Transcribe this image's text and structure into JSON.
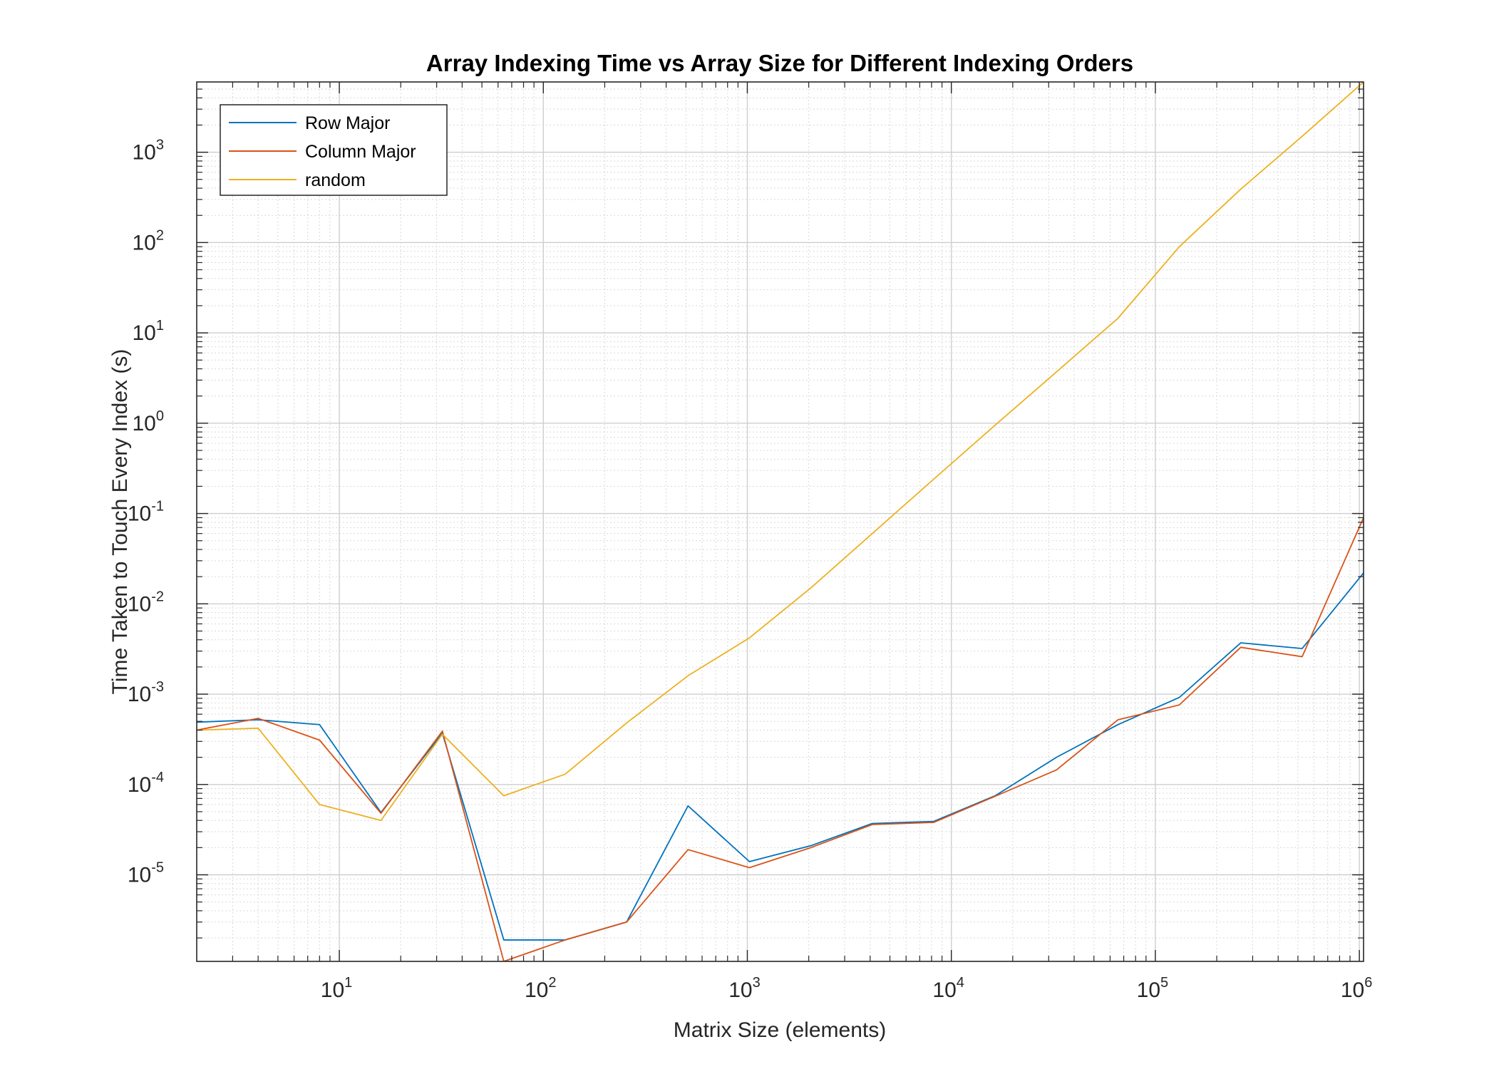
{
  "chart_data": {
    "type": "line",
    "title": "Array Indexing Time vs Array Size for Different Indexing Orders",
    "xlabel": "Matrix Size (elements)",
    "ylabel": "Time Taken to Touch Every Index (s)",
    "xscale": "log",
    "yscale": "log",
    "xlim": [
      2,
      1048576
    ],
    "ylim": [
      1.1e-06,
      6000
    ],
    "grid": true,
    "minor_grid": true,
    "legend_position": "top-left",
    "x_ticks": [
      {
        "value": 10,
        "base": "10",
        "exp": "1"
      },
      {
        "value": 100,
        "base": "10",
        "exp": "2"
      },
      {
        "value": 1000,
        "base": "10",
        "exp": "3"
      },
      {
        "value": 10000,
        "base": "10",
        "exp": "4"
      },
      {
        "value": 100000,
        "base": "10",
        "exp": "5"
      },
      {
        "value": 1000000,
        "base": "10",
        "exp": "6"
      }
    ],
    "y_ticks": [
      {
        "value": 1e-05,
        "base": "10",
        "exp": "-5"
      },
      {
        "value": 0.0001,
        "base": "10",
        "exp": "-4"
      },
      {
        "value": 0.001,
        "base": "10",
        "exp": "-3"
      },
      {
        "value": 0.01,
        "base": "10",
        "exp": "-2"
      },
      {
        "value": 0.1,
        "base": "10",
        "exp": "-1"
      },
      {
        "value": 1,
        "base": "10",
        "exp": "0"
      },
      {
        "value": 10,
        "base": "10",
        "exp": "1"
      },
      {
        "value": 100,
        "base": "10",
        "exp": "2"
      },
      {
        "value": 1000,
        "base": "10",
        "exp": "3"
      }
    ],
    "x": [
      2,
      4,
      8,
      16,
      32,
      64,
      128,
      256,
      512,
      1024,
      2048,
      4096,
      8192,
      16384,
      32768,
      65536,
      131072,
      262144,
      524288,
      1048576
    ],
    "series": [
      {
        "name": "Row Major",
        "color": "#0072BD",
        "values": [
          0.00049,
          0.00052,
          0.00046,
          4.9e-05,
          0.00037,
          1.9e-06,
          1.9e-06,
          3e-06,
          5.8e-05,
          1.4e-05,
          2.1e-05,
          3.7e-05,
          3.9e-05,
          7.5e-05,
          0.0002,
          0.00046,
          0.00092,
          0.0037,
          0.0032,
          0.022
        ]
      },
      {
        "name": "Column Major",
        "color": "#D95319",
        "values": [
          0.0004,
          0.00054,
          0.00031,
          4.8e-05,
          0.00039,
          1.1e-06,
          1.9e-06,
          3e-06,
          1.9e-05,
          1.2e-05,
          2e-05,
          3.6e-05,
          3.8e-05,
          7.4e-05,
          0.000145,
          0.00052,
          0.00076,
          0.0033,
          0.0026,
          0.09
        ]
      },
      {
        "name": "random",
        "color": "#EDB120",
        "values": [
          0.0004,
          0.00042,
          6e-05,
          4e-05,
          0.00036,
          7.5e-05,
          0.00013,
          0.00048,
          0.0016,
          0.0042,
          0.015,
          0.06,
          0.24,
          0.95,
          3.7,
          14.5,
          90,
          390,
          1500,
          6000
        ]
      }
    ]
  }
}
